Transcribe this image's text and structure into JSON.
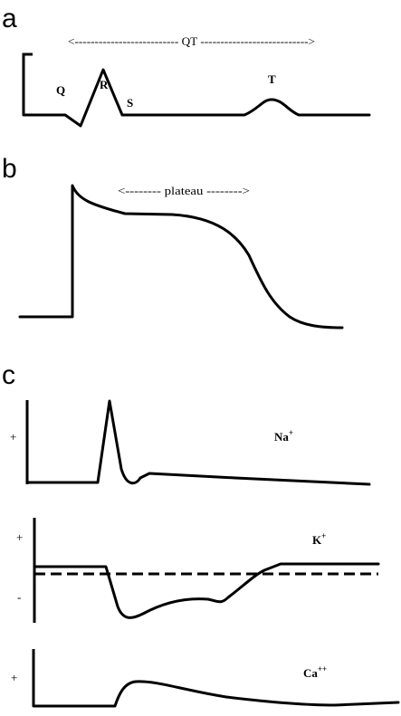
{
  "panels": {
    "a": {
      "letter": "a",
      "interval": "<-------------------------- QT --------------------------->",
      "waves": {
        "q": "Q",
        "r": "R",
        "s": "S",
        "t": "T"
      }
    },
    "b": {
      "letter": "b",
      "interval": "<-------- plateau -------->"
    },
    "c": {
      "letter": "c",
      "currents": [
        {
          "ion": "Na",
          "charge": "+",
          "sign": "+"
        },
        {
          "ion": "K",
          "charge": "+",
          "sign_top": "+",
          "sign_bottom": "-"
        },
        {
          "ion": "Ca",
          "charge": "++",
          "sign": "+"
        }
      ]
    }
  }
}
